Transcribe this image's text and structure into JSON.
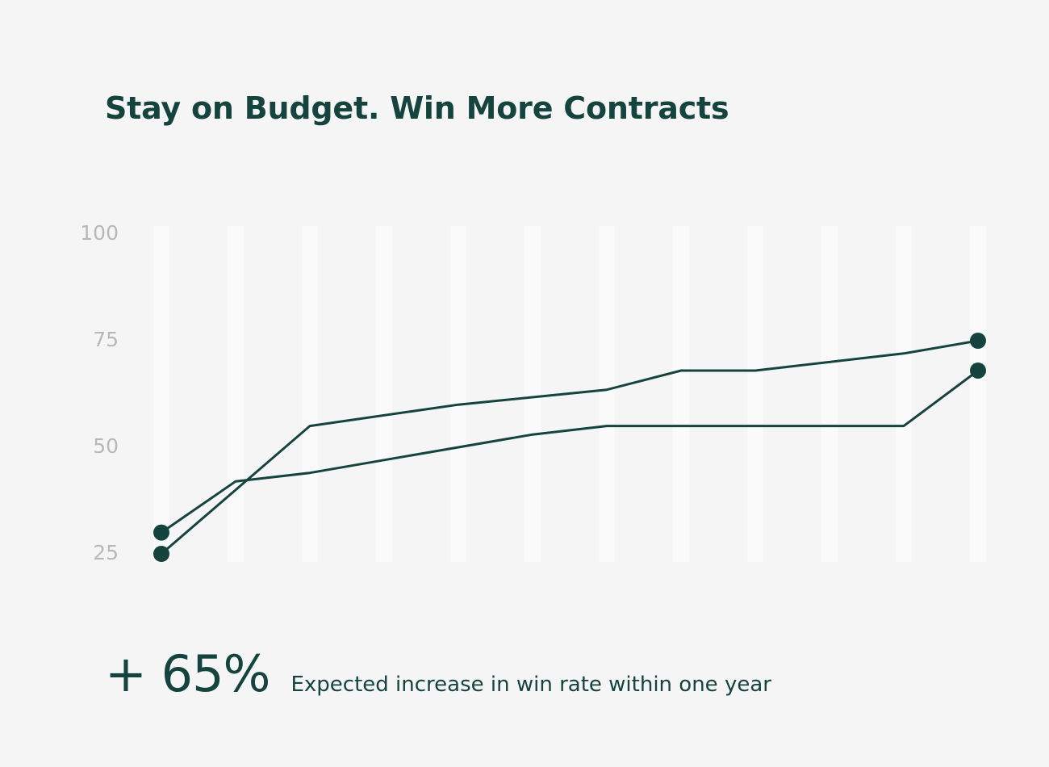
{
  "colors": {
    "background": "#f5f5f5",
    "line": "#15443f",
    "grid_band": "#fafafa",
    "tick_label": "#b8b8b8"
  },
  "chart_data": {
    "type": "line",
    "title": "Stay on Budget. Win More Contracts",
    "xlabel": "",
    "ylabel": "",
    "ylim": [
      25,
      100
    ],
    "yticks": [
      100,
      75,
      50,
      25
    ],
    "x": [
      0,
      1,
      2,
      3,
      4,
      5,
      6,
      7,
      8,
      9,
      10,
      11
    ],
    "grid": "vertical bands",
    "series": [
      {
        "values": [
          30,
          42,
          44,
          47,
          50,
          53,
          55,
          55,
          55,
          55,
          55,
          68
        ]
      },
      {
        "values": [
          25,
          null,
          55,
          null,
          60,
          null,
          63.5,
          68,
          68,
          null,
          72,
          75
        ]
      }
    ]
  },
  "stat": {
    "value": "+ 65%",
    "caption": "Expected increase in win rate within one year"
  }
}
